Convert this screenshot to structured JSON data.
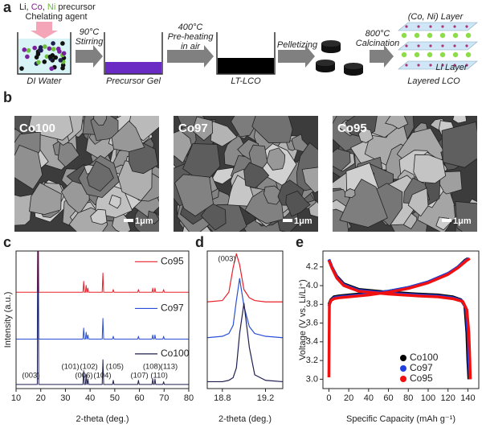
{
  "panels": {
    "a": {
      "label": "a",
      "precursor": [
        {
          "text": "Li, ",
          "color": "#222222"
        },
        {
          "text": "Co",
          "color": "#8b1a9e"
        },
        {
          "text": ", ",
          "color": "#222222"
        },
        {
          "text": "Ni",
          "color": "#6cbf3a"
        },
        {
          "text": " precursor",
          "color": "#222222"
        }
      ],
      "chelating": "Chelating agent",
      "beaker_labels": [
        "DI Water",
        "Precursor Gel",
        "LT-LCO",
        "Layered LCO"
      ],
      "arrow_labels": [
        [
          "90°C",
          "Stirring"
        ],
        [
          "400°C",
          "Pre-heating",
          "in air"
        ],
        [
          "Pelletizing"
        ],
        [
          "800°C",
          "Calcination"
        ]
      ],
      "layer_labels": [
        "(Co, Ni) Layer",
        "Li Layer"
      ]
    },
    "b": {
      "label": "b",
      "images": [
        "Co100",
        "Co97",
        "Co95"
      ],
      "scale": "1μm"
    }
  },
  "chart_data": [
    {
      "type": "line",
      "label": "c",
      "x_label": "2-theta (deg.)",
      "y_label": "Intensity (a.u.)",
      "xlim": [
        10,
        80
      ],
      "xticks": [
        10,
        20,
        30,
        40,
        50,
        60,
        70,
        80
      ],
      "ylim": [
        0,
        100
      ],
      "legend": "trace",
      "series": [
        {
          "name": "Co95",
          "color": "#e8202a",
          "x": [
            10,
            18.6,
            18.9,
            19.2,
            37.1,
            37.4,
            37.7,
            38.1,
            38.4,
            38.7,
            38.8,
            39.1,
            39.4,
            44.9,
            45.2,
            45.5,
            49.1,
            49.4,
            49.7,
            59.3,
            59.6,
            59.9,
            65.1,
            65.4,
            65.7,
            66.0,
            66.3,
            66.6,
            69.5,
            69.8,
            70.1,
            80
          ],
          "values": [
            70,
            70,
            140,
            70,
            70,
            78,
            70,
            70,
            75,
            70,
            70,
            73,
            70,
            70,
            84,
            70,
            70,
            72,
            70,
            70,
            72,
            70,
            70,
            73,
            70,
            70,
            73,
            70,
            70,
            72,
            70,
            70
          ]
        },
        {
          "name": "Co97",
          "color": "#2a4fd6",
          "x": [
            10,
            18.6,
            18.9,
            19.2,
            37.1,
            37.4,
            37.7,
            38.1,
            38.4,
            38.7,
            38.8,
            39.1,
            39.4,
            44.9,
            45.2,
            45.5,
            49.1,
            49.4,
            49.7,
            59.3,
            59.6,
            59.9,
            65.1,
            65.4,
            65.7,
            66.0,
            66.3,
            66.6,
            69.5,
            69.8,
            70.1,
            80
          ],
          "values": [
            36,
            36,
            130,
            36,
            36,
            44,
            36,
            36,
            41,
            36,
            36,
            39,
            36,
            36,
            51,
            36,
            36,
            38,
            36,
            36,
            38,
            36,
            36,
            39,
            36,
            36,
            39,
            36,
            36,
            38,
            36,
            36
          ]
        },
        {
          "name": "Co100",
          "color": "#1f1f4f",
          "x": [
            10,
            18.6,
            18.9,
            19.2,
            37.1,
            37.4,
            37.7,
            38.1,
            38.4,
            38.7,
            38.8,
            39.1,
            39.4,
            44.9,
            45.2,
            45.5,
            49.1,
            49.4,
            49.7,
            59.3,
            59.6,
            59.9,
            65.1,
            65.4,
            65.7,
            66.0,
            66.3,
            66.6,
            69.5,
            69.8,
            70.1,
            80
          ],
          "values": [
            3,
            3,
            120,
            3,
            3,
            13,
            3,
            3,
            10,
            3,
            3,
            7,
            3,
            3,
            21,
            3,
            3,
            6,
            3,
            3,
            6,
            3,
            3,
            7,
            3,
            3,
            7,
            3,
            3,
            5,
            3,
            3
          ]
        }
      ],
      "annotations": [
        {
          "text": "(003)",
          "x": 16
        },
        {
          "text": "(101)",
          "x": 32
        },
        {
          "text": "(006)",
          "x": 37.5
        },
        {
          "text": "(102)",
          "x": 39.5
        },
        {
          "text": "(104)",
          "x": 45
        },
        {
          "text": "(105)",
          "x": 50
        },
        {
          "text": "(107)",
          "x": 60
        },
        {
          "text": "(108)",
          "x": 65
        },
        {
          "text": "(110)",
          "x": 68
        },
        {
          "text": "(113)",
          "x": 72
        }
      ]
    },
    {
      "type": "line",
      "label": "d",
      "x_label": "2-theta (deg.)",
      "xlim": [
        18.66,
        19.36
      ],
      "xticks": [
        18.8,
        19.2
      ],
      "ylim": [
        0,
        100
      ],
      "series": [
        {
          "name": "Co95",
          "color": "#e8202a",
          "x": [
            18.66,
            18.8,
            18.86,
            18.9,
            18.93,
            18.96,
            19.0,
            19.05,
            19.1,
            19.2,
            19.36
          ],
          "values": [
            63,
            64,
            70,
            88,
            98,
            90,
            72,
            66,
            64,
            63,
            63
          ]
        },
        {
          "name": "Co97",
          "color": "#2a4fd6",
          "x": [
            18.66,
            18.8,
            18.86,
            18.9,
            18.93,
            18.96,
            19.0,
            19.05,
            19.1,
            19.2,
            19.36
          ],
          "values": [
            37,
            38,
            40,
            46,
            64,
            80,
            60,
            45,
            40,
            38,
            37
          ]
        },
        {
          "name": "Co100",
          "color": "#1f1f4f",
          "x": [
            18.66,
            18.8,
            18.86,
            18.9,
            18.93,
            18.96,
            19.0,
            19.05,
            19.1,
            19.2,
            19.36
          ],
          "values": [
            5,
            5,
            6,
            8,
            15,
            40,
            62,
            30,
            10,
            6,
            5
          ]
        }
      ],
      "annotations": [
        {
          "text": "(003)",
          "x": 18.76
        }
      ]
    },
    {
      "type": "line",
      "label": "e",
      "x_label": "Specific Capacity (mAh g⁻¹)",
      "y_label": "Voltage (V vs. Li/Li⁺)",
      "xlim": [
        -6,
        151
      ],
      "xticks": [
        0,
        20,
        40,
        60,
        80,
        100,
        120,
        140
      ],
      "ylim": [
        2.9,
        4.37
      ],
      "yticks": [
        {
          "value": 3,
          "label": "3.0"
        },
        3.2,
        3.4,
        3.6,
        3.8,
        {
          "value": 4,
          "label": "4.0"
        },
        4.2
      ],
      "legend": "lower right",
      "series": [
        {
          "name": "Co100",
          "color": "#000000",
          "x": [
            0,
            2,
            5,
            10,
            20,
            40,
            60,
            80,
            100,
            120,
            130,
            137,
            140,
            null,
            0,
            3,
            8,
            15,
            30,
            60,
            90,
            110,
            125,
            133,
            137,
            139,
            140,
            141
          ],
          "values": [
            3.8,
            3.85,
            3.88,
            3.89,
            3.9,
            3.92,
            3.94,
            3.98,
            4.04,
            4.13,
            4.2,
            4.27,
            4.29,
            null,
            4.28,
            4.2,
            4.1,
            4.02,
            3.96,
            3.93,
            3.91,
            3.9,
            3.88,
            3.85,
            3.78,
            3.5,
            3.2,
            3.0
          ]
        },
        {
          "name": "Co97",
          "color": "#1f3fe0",
          "x": [
            0,
            2,
            5,
            10,
            20,
            40,
            60,
            80,
            100,
            120,
            130,
            138,
            141,
            null,
            0,
            3,
            8,
            15,
            30,
            60,
            90,
            110,
            125,
            134,
            138,
            140,
            141,
            142
          ],
          "values": [
            3.78,
            3.84,
            3.87,
            3.88,
            3.89,
            3.91,
            3.94,
            3.98,
            4.04,
            4.13,
            4.2,
            4.27,
            4.29,
            null,
            4.28,
            4.2,
            4.09,
            4.01,
            3.95,
            3.92,
            3.9,
            3.89,
            3.87,
            3.84,
            3.76,
            3.5,
            3.2,
            3.0
          ]
        },
        {
          "name": "Co95",
          "color": "#f01010",
          "x": [
            0,
            0.5,
            2,
            5,
            10,
            20,
            40,
            60,
            80,
            100,
            120,
            130,
            139,
            142,
            null,
            0,
            3,
            8,
            15,
            30,
            60,
            90,
            110,
            125,
            135,
            139,
            141,
            142,
            142.5
          ],
          "values": [
            3.02,
            3.8,
            3.84,
            3.86,
            3.87,
            3.88,
            3.9,
            3.93,
            3.97,
            4.03,
            4.12,
            4.19,
            4.27,
            4.29,
            null,
            4.27,
            4.19,
            4.08,
            4.0,
            3.94,
            3.91,
            3.89,
            3.88,
            3.86,
            3.83,
            3.74,
            3.5,
            3.2,
            3.0
          ]
        }
      ]
    }
  ]
}
